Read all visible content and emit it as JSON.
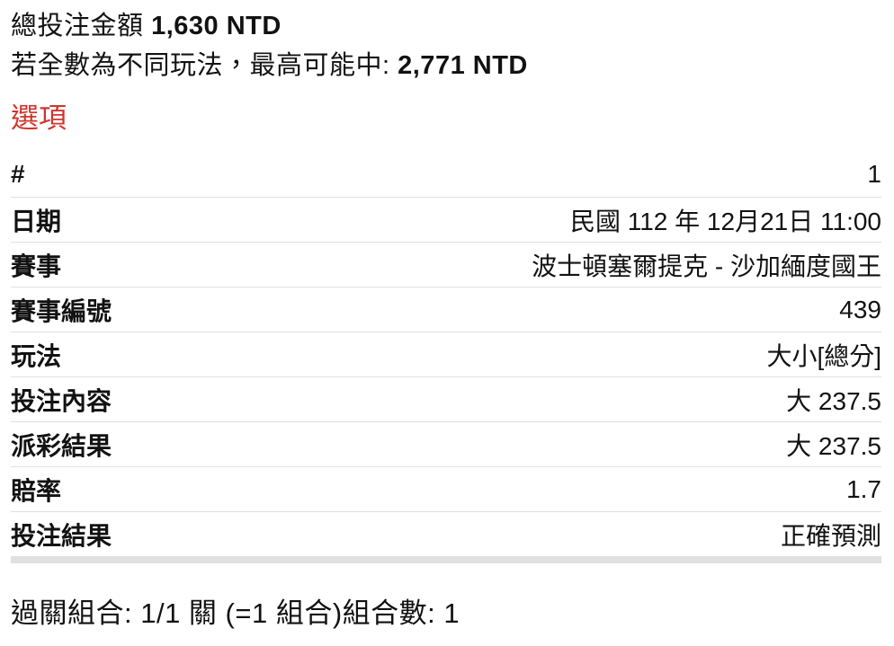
{
  "colors": {
    "accent_red": "#d0352d",
    "divider": "#e0e0e0",
    "text": "#121212"
  },
  "header": {
    "total_label": "總投注金額 ",
    "total_amount": "1,630 NTD",
    "max_win_label": "若全數為不同玩法，最高可能中: ",
    "max_win_amount": "2,771 NTD",
    "options_title": "選項"
  },
  "selection": {
    "rows": [
      {
        "label": "#",
        "value": "1"
      },
      {
        "label": "日期",
        "value": "民國 112 年 12月21日 11:00"
      },
      {
        "label": "賽事",
        "value": "波士頓塞爾提克 - 沙加緬度國王"
      },
      {
        "label": "賽事編號",
        "value": "439"
      },
      {
        "label": "玩法",
        "value": "大小[總分]"
      },
      {
        "label": "投注內容",
        "value": "大 237.5"
      },
      {
        "label": "派彩結果",
        "value": "大 237.5"
      },
      {
        "label": "賠率",
        "value": "1.7"
      },
      {
        "label": "投注結果",
        "value": "正確預測"
      }
    ]
  },
  "footer": {
    "parlay_text": "過關組合: 1/1 關 (=1 組合)",
    "combination_count_text": "組合數: 1"
  }
}
